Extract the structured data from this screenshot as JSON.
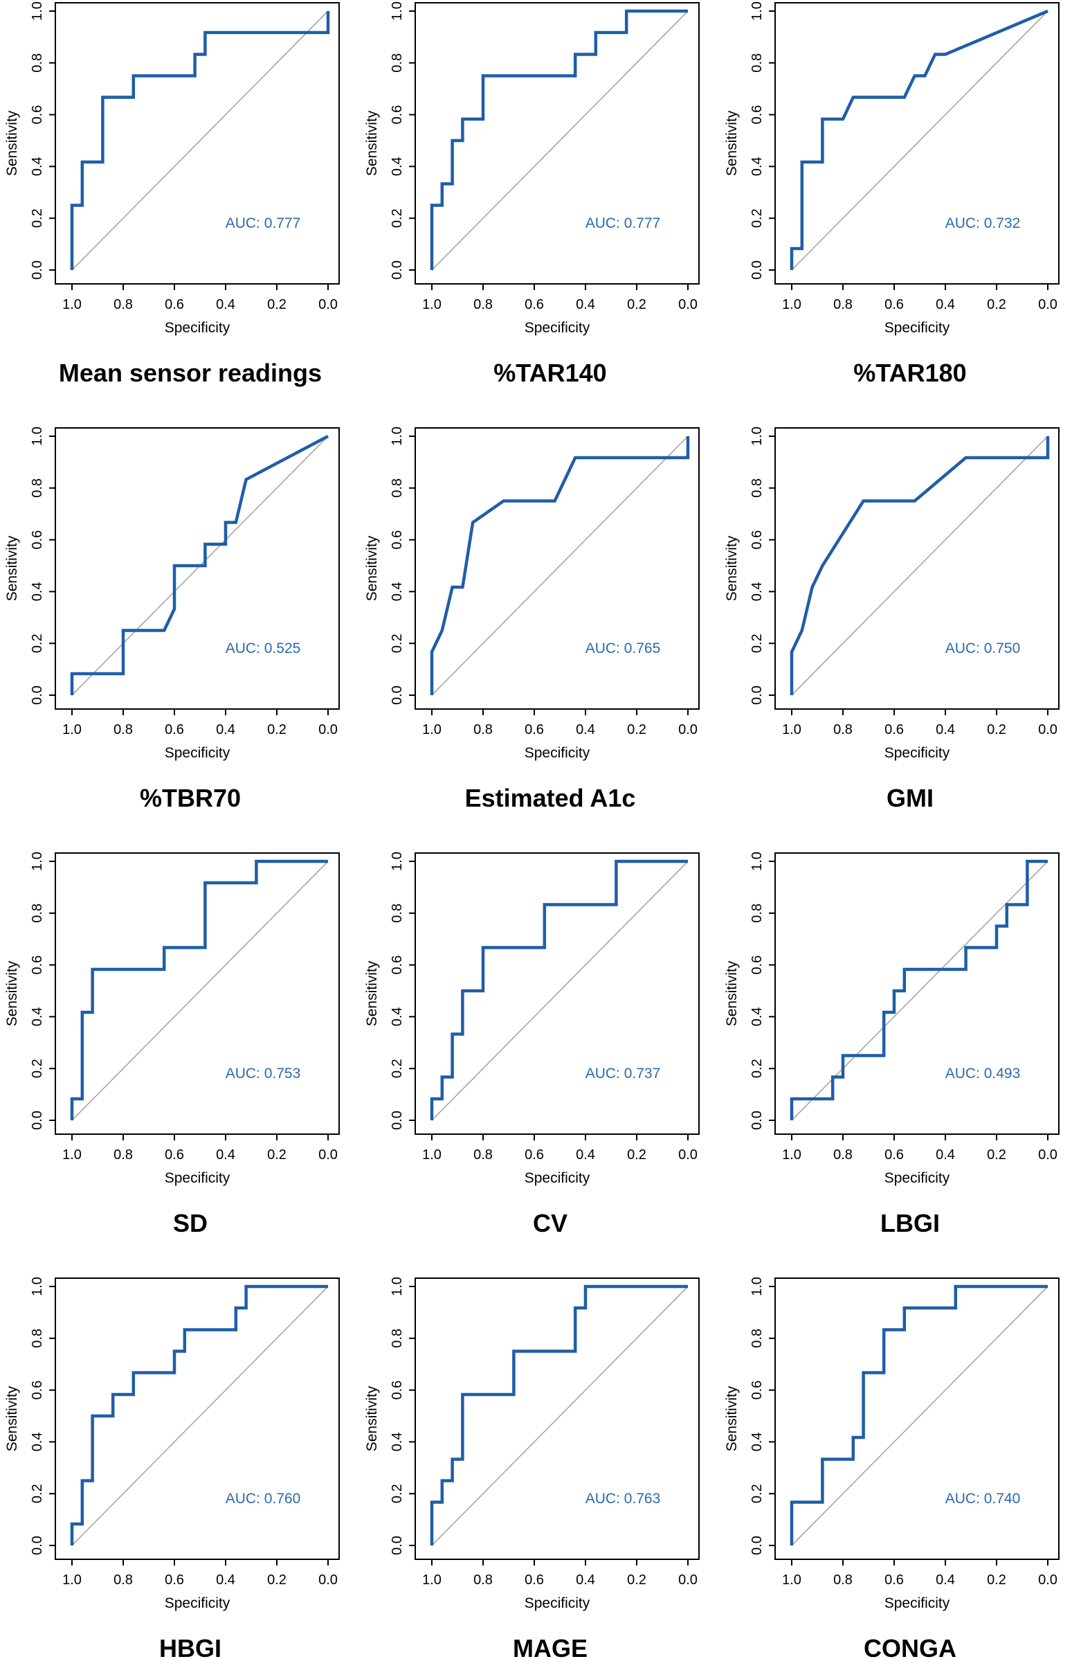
{
  "axis": {
    "xlabel": "Specificity",
    "ylabel": "Sensitivity",
    "x_ticks": [
      "1.0",
      "0.8",
      "0.6",
      "0.4",
      "0.2",
      "0.0"
    ],
    "y_ticks": [
      "0.0",
      "0.2",
      "0.4",
      "0.6",
      "0.8",
      "1.0"
    ]
  },
  "colors": {
    "roc_line": "#1f5ea8",
    "auc_text": "#2a6aad",
    "diagonal": "#a6a6a6"
  },
  "chart_data": [
    {
      "type": "line",
      "title": "Mean sensor readings",
      "xlabel": "Specificity",
      "ylabel": "Sensitivity",
      "xlim": [
        1.0,
        0.0
      ],
      "ylim": [
        0.0,
        1.0
      ],
      "auc_label": "AUC: 0.777",
      "x": [
        1.0,
        1.0,
        0.96,
        0.96,
        0.88,
        0.88,
        0.76,
        0.76,
        0.52,
        0.52,
        0.48,
        0.48,
        0.0,
        0.0
      ],
      "y": [
        0.0,
        0.25,
        0.25,
        0.417,
        0.417,
        0.667,
        0.667,
        0.75,
        0.75,
        0.833,
        0.833,
        0.917,
        0.917,
        1.0
      ]
    },
    {
      "type": "line",
      "title": "%TAR140",
      "xlabel": "Specificity",
      "ylabel": "Sensitivity",
      "xlim": [
        1.0,
        0.0
      ],
      "ylim": [
        0.0,
        1.0
      ],
      "auc_label": "AUC: 0.777",
      "x": [
        1.0,
        1.0,
        0.96,
        0.96,
        0.92,
        0.92,
        0.88,
        0.88,
        0.8,
        0.8,
        0.44,
        0.44,
        0.36,
        0.36,
        0.24,
        0.24,
        0.0
      ],
      "y": [
        0.0,
        0.25,
        0.25,
        0.333,
        0.333,
        0.5,
        0.5,
        0.583,
        0.583,
        0.75,
        0.75,
        0.833,
        0.833,
        0.917,
        0.917,
        1.0,
        1.0
      ]
    },
    {
      "type": "line",
      "title": "%TAR180",
      "xlabel": "Specificity",
      "ylabel": "Sensitivity",
      "xlim": [
        1.0,
        0.0
      ],
      "ylim": [
        0.0,
        1.0
      ],
      "auc_label": "AUC: 0.732",
      "x": [
        1.0,
        1.0,
        0.96,
        0.96,
        0.88,
        0.88,
        0.8,
        0.76,
        0.56,
        0.52,
        0.48,
        0.44,
        0.4,
        0.0
      ],
      "y": [
        0.0,
        0.083,
        0.083,
        0.417,
        0.417,
        0.583,
        0.583,
        0.667,
        0.667,
        0.75,
        0.75,
        0.833,
        0.833,
        1.0
      ]
    },
    {
      "type": "line",
      "title": "%TBR70",
      "xlabel": "Specificity",
      "ylabel": "Sensitivity",
      "xlim": [
        1.0,
        0.0
      ],
      "ylim": [
        0.0,
        1.0
      ],
      "auc_label": "AUC: 0.525",
      "x": [
        1.0,
        1.0,
        0.8,
        0.8,
        0.64,
        0.6,
        0.6,
        0.48,
        0.48,
        0.4,
        0.4,
        0.36,
        0.32,
        0.0
      ],
      "y": [
        0.0,
        0.083,
        0.083,
        0.25,
        0.25,
        0.333,
        0.5,
        0.5,
        0.583,
        0.583,
        0.667,
        0.667,
        0.833,
        1.0
      ]
    },
    {
      "type": "line",
      "title": "Estimated A1c",
      "xlabel": "Specificity",
      "ylabel": "Sensitivity",
      "xlim": [
        1.0,
        0.0
      ],
      "ylim": [
        0.0,
        1.0
      ],
      "auc_label": "AUC: 0.765",
      "x": [
        1.0,
        1.0,
        0.96,
        0.92,
        0.88,
        0.84,
        0.72,
        0.52,
        0.44,
        0.0,
        0.0
      ],
      "y": [
        0.0,
        0.167,
        0.25,
        0.417,
        0.417,
        0.667,
        0.75,
        0.75,
        0.917,
        0.917,
        1.0
      ]
    },
    {
      "type": "line",
      "title": "GMI",
      "xlabel": "Specificity",
      "ylabel": "Sensitivity",
      "xlim": [
        1.0,
        0.0
      ],
      "ylim": [
        0.0,
        1.0
      ],
      "auc_label": "AUC: 0.750",
      "x": [
        1.0,
        1.0,
        0.96,
        0.92,
        0.88,
        0.72,
        0.52,
        0.32,
        0.0,
        0.0
      ],
      "y": [
        0.0,
        0.167,
        0.25,
        0.417,
        0.5,
        0.75,
        0.75,
        0.917,
        0.917,
        1.0
      ]
    },
    {
      "type": "line",
      "title": "SD",
      "xlabel": "Specificity",
      "ylabel": "Sensitivity",
      "xlim": [
        1.0,
        0.0
      ],
      "ylim": [
        0.0,
        1.0
      ],
      "auc_label": "AUC: 0.753",
      "x": [
        1.0,
        1.0,
        0.96,
        0.96,
        0.92,
        0.92,
        0.64,
        0.64,
        0.48,
        0.48,
        0.28,
        0.28,
        0.0
      ],
      "y": [
        0.0,
        0.083,
        0.083,
        0.417,
        0.417,
        0.583,
        0.583,
        0.667,
        0.667,
        0.917,
        0.917,
        1.0,
        1.0
      ]
    },
    {
      "type": "line",
      "title": "CV",
      "xlabel": "Specificity",
      "ylabel": "Sensitivity",
      "xlim": [
        1.0,
        0.0
      ],
      "ylim": [
        0.0,
        1.0
      ],
      "auc_label": "AUC: 0.737",
      "x": [
        1.0,
        1.0,
        0.96,
        0.96,
        0.92,
        0.92,
        0.88,
        0.88,
        0.8,
        0.8,
        0.56,
        0.56,
        0.28,
        0.28,
        0.0
      ],
      "y": [
        0.0,
        0.083,
        0.083,
        0.167,
        0.167,
        0.333,
        0.333,
        0.5,
        0.5,
        0.667,
        0.667,
        0.833,
        0.833,
        1.0,
        1.0
      ]
    },
    {
      "type": "line",
      "title": "LBGI",
      "xlabel": "Specificity",
      "ylabel": "Sensitivity",
      "xlim": [
        1.0,
        0.0
      ],
      "ylim": [
        0.0,
        1.0
      ],
      "auc_label": "AUC: 0.493",
      "x": [
        1.0,
        1.0,
        0.84,
        0.84,
        0.8,
        0.8,
        0.64,
        0.64,
        0.6,
        0.6,
        0.56,
        0.56,
        0.32,
        0.32,
        0.2,
        0.2,
        0.16,
        0.16,
        0.08,
        0.08,
        0.0
      ],
      "y": [
        0.0,
        0.083,
        0.083,
        0.167,
        0.167,
        0.25,
        0.25,
        0.417,
        0.417,
        0.5,
        0.5,
        0.583,
        0.583,
        0.667,
        0.667,
        0.75,
        0.75,
        0.833,
        0.833,
        1.0,
        1.0
      ]
    },
    {
      "type": "line",
      "title": "HBGI",
      "xlabel": "Specificity",
      "ylabel": "Sensitivity",
      "xlim": [
        1.0,
        0.0
      ],
      "ylim": [
        0.0,
        1.0
      ],
      "auc_label": "AUC: 0.760",
      "x": [
        1.0,
        1.0,
        0.96,
        0.96,
        0.92,
        0.92,
        0.84,
        0.84,
        0.76,
        0.76,
        0.6,
        0.6,
        0.56,
        0.56,
        0.36,
        0.36,
        0.32,
        0.32,
        0.0
      ],
      "y": [
        0.0,
        0.083,
        0.083,
        0.25,
        0.25,
        0.5,
        0.5,
        0.583,
        0.583,
        0.667,
        0.667,
        0.75,
        0.75,
        0.833,
        0.833,
        0.917,
        0.917,
        1.0,
        1.0
      ]
    },
    {
      "type": "line",
      "title": "MAGE",
      "xlabel": "Specificity",
      "ylabel": "Sensitivity",
      "xlim": [
        1.0,
        0.0
      ],
      "ylim": [
        0.0,
        1.0
      ],
      "auc_label": "AUC: 0.763",
      "x": [
        1.0,
        1.0,
        0.96,
        0.96,
        0.92,
        0.92,
        0.88,
        0.88,
        0.68,
        0.68,
        0.44,
        0.44,
        0.4,
        0.4,
        0.0
      ],
      "y": [
        0.0,
        0.167,
        0.167,
        0.25,
        0.25,
        0.333,
        0.333,
        0.583,
        0.583,
        0.75,
        0.75,
        0.917,
        0.917,
        1.0,
        1.0
      ]
    },
    {
      "type": "line",
      "title": "CONGA",
      "xlabel": "Specificity",
      "ylabel": "Sensitivity",
      "xlim": [
        1.0,
        0.0
      ],
      "ylim": [
        0.0,
        1.0
      ],
      "auc_label": "AUC: 0.740",
      "x": [
        1.0,
        1.0,
        0.88,
        0.88,
        0.76,
        0.76,
        0.72,
        0.72,
        0.64,
        0.64,
        0.56,
        0.56,
        0.36,
        0.36,
        0.0
      ],
      "y": [
        0.0,
        0.167,
        0.167,
        0.333,
        0.333,
        0.417,
        0.417,
        0.667,
        0.667,
        0.833,
        0.833,
        0.917,
        0.917,
        1.0,
        1.0
      ]
    }
  ]
}
